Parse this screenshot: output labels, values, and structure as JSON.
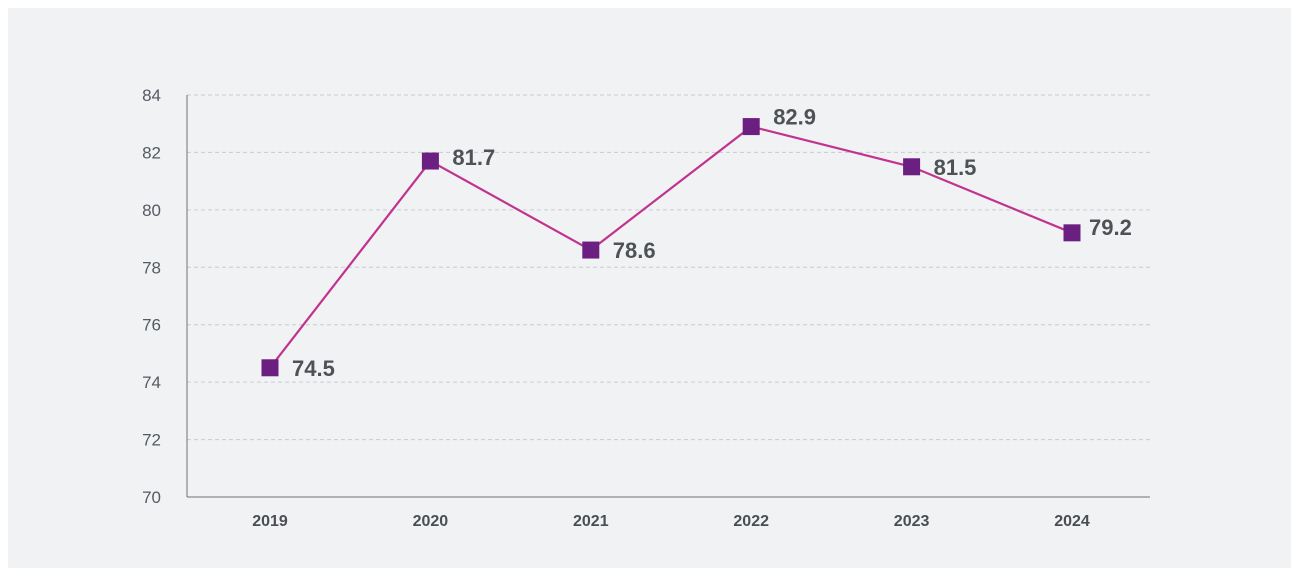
{
  "chart_data": {
    "type": "line",
    "categories": [
      "2019",
      "2020",
      "2021",
      "2022",
      "2023",
      "2024"
    ],
    "series": [
      {
        "values": [
          74.5,
          81.7,
          78.6,
          82.9,
          81.5,
          79.2
        ]
      }
    ],
    "data_labels": [
      "74.5",
      "81.7",
      "78.6",
      "82.9",
      "81.5",
      "79.2"
    ],
    "y_ticks": [
      "70",
      "72",
      "74",
      "76",
      "78",
      "80",
      "82",
      "84"
    ],
    "ylim": [
      70,
      84
    ],
    "grid": true,
    "grid_style": "dashed-horizontal",
    "marker": "square",
    "colors": {
      "line": "#c0338f",
      "marker": "#6b1f80",
      "grid": "#c8cbd0",
      "axis": "#6d7177",
      "background": "#f1f2f4"
    }
  }
}
